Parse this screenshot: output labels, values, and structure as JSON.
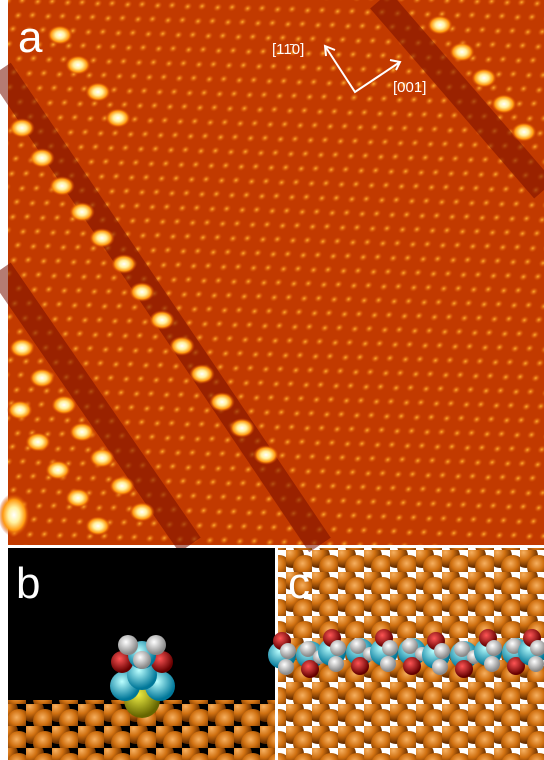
{
  "panels": {
    "a": {
      "label": "a",
      "directions": [
        "[11̄0]",
        "[001]"
      ]
    },
    "b": {
      "label": "b"
    },
    "c": {
      "label": "c"
    }
  }
}
